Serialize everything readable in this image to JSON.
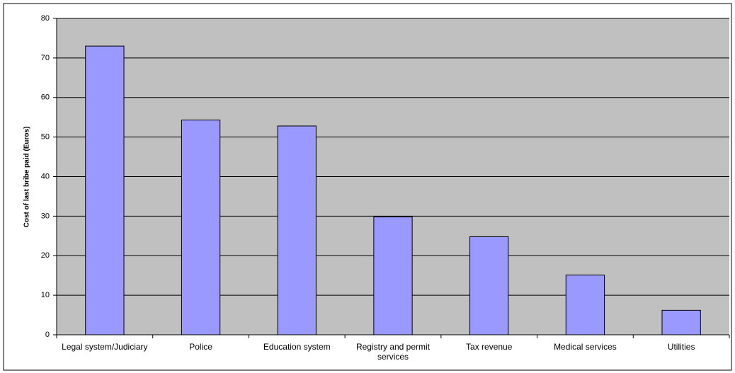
{
  "chart_data": {
    "type": "bar",
    "y_label": "Cost of last bribe paid (Euros)",
    "categories": [
      "Legal system/Judiciary",
      "Police",
      "Education system",
      "Registry and permit services",
      "Tax revenue",
      "Medical services",
      "Utilities"
    ],
    "values": [
      73,
      54.3,
      52.8,
      29.8,
      24.8,
      15.1,
      6.2
    ],
    "color": "#9999ff",
    "ylim": [
      0,
      80
    ],
    "yticks": [
      0,
      10,
      20,
      30,
      40,
      50,
      60,
      70,
      80
    ],
    "grid": true
  }
}
